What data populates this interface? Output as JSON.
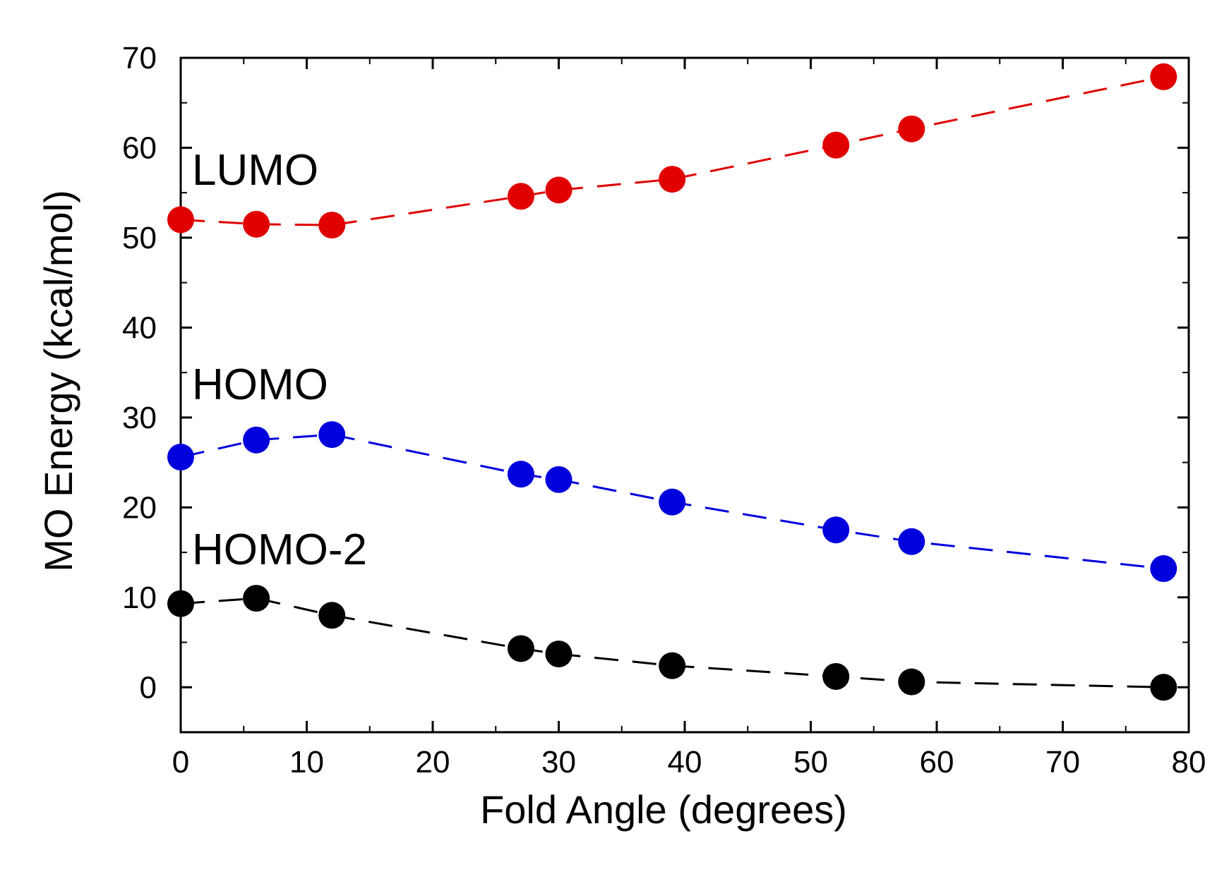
{
  "chart_data": {
    "type": "line",
    "title": "",
    "xlabel": "Fold Angle (degrees)",
    "ylabel": "MO Energy (kcal/mol)",
    "xlim": [
      0,
      80
    ],
    "ylim": [
      -5,
      70
    ],
    "xticks": [
      "0",
      "10",
      "20",
      "30",
      "40",
      "50",
      "60",
      "70",
      "80"
    ],
    "yticks": [
      "0",
      "10",
      "20",
      "30",
      "40",
      "50",
      "60",
      "70"
    ],
    "grid": false,
    "x": [
      0,
      6,
      12,
      27,
      30,
      39,
      52,
      58,
      78
    ],
    "series": [
      {
        "name": "LUMO",
        "label": "LUMO",
        "color": "#e00000",
        "line_style": "dashed",
        "values": [
          52.0,
          51.5,
          51.4,
          54.6,
          55.3,
          56.5,
          60.3,
          62.1,
          67.9
        ]
      },
      {
        "name": "HOMO",
        "label": "HOMO",
        "color": "#0000dd",
        "line_style": "dashed",
        "values": [
          25.6,
          27.5,
          28.1,
          23.7,
          23.1,
          20.6,
          17.5,
          16.2,
          13.2
        ]
      },
      {
        "name": "HOMO-2",
        "label": "HOMO-2",
        "color": "#000000",
        "line_style": "dashed",
        "values": [
          9.3,
          9.9,
          8.0,
          4.3,
          3.7,
          2.4,
          1.2,
          0.6,
          0.0
        ]
      }
    ]
  }
}
